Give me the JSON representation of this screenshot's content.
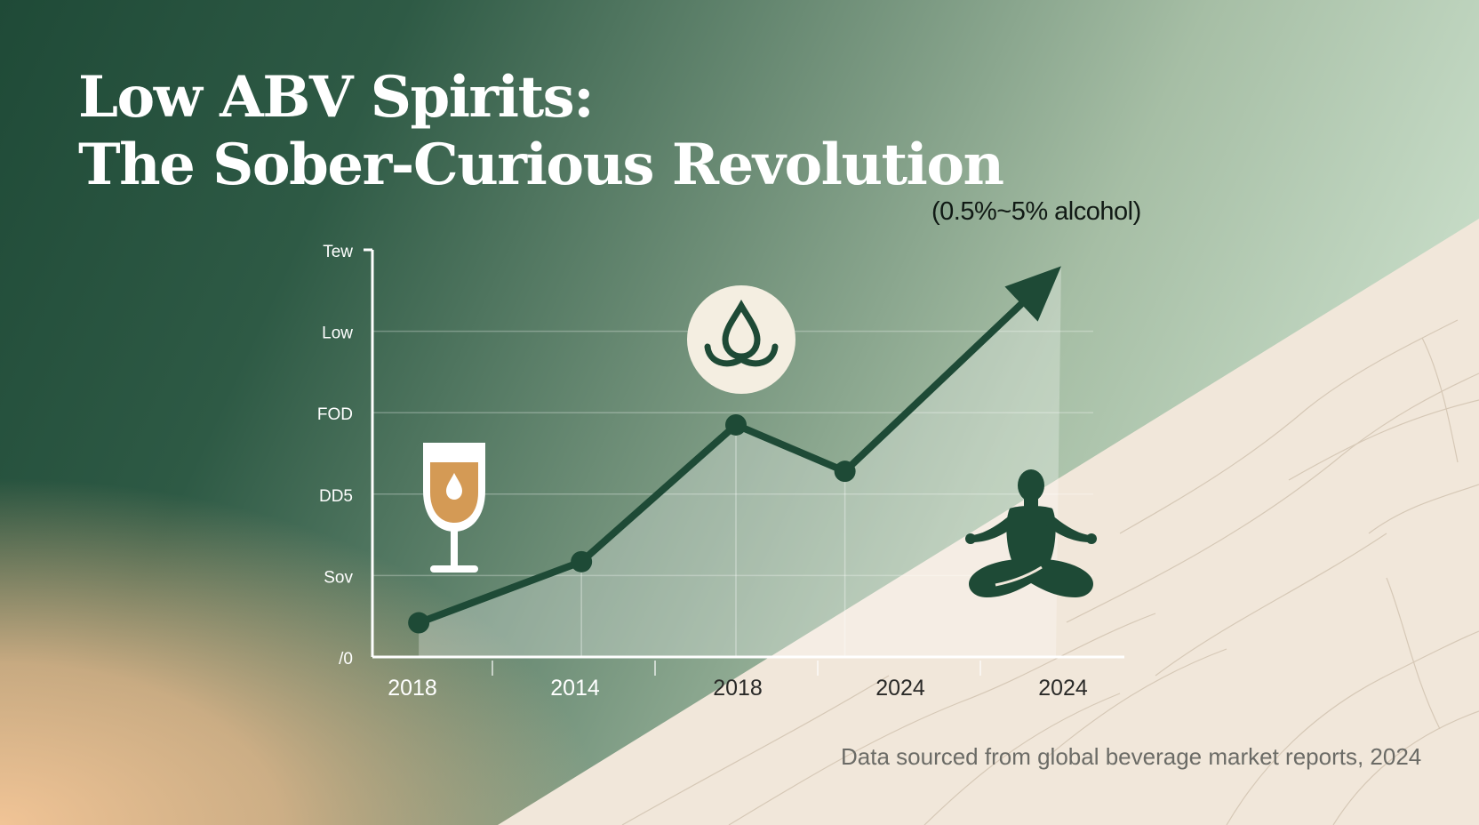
{
  "title": {
    "line1": "Low ABV Spirits:",
    "line2": "The Sober-Curious Revolution"
  },
  "annotations": {
    "range_note": "(0.5%~5% alcohol)",
    "source_note": "Data sourced from global beverage market reports, 2024"
  },
  "icons": [
    "wine-glass-icon",
    "drop-icon",
    "meditation-icon",
    "trend-arrow-icon"
  ],
  "colors": {
    "line": "#1e4a36",
    "wine": "#d49a55",
    "badge": "#f4eee1",
    "title": "#ffffff"
  },
  "chart_data": {
    "type": "line",
    "title": "",
    "xlabel": "",
    "ylabel": "",
    "x_ticks": [
      "2018",
      "2014",
      "2018",
      "2024",
      "2024"
    ],
    "y_ticks": [
      "/0",
      "Sov",
      "DD5",
      "FOD",
      "Low",
      "Tew"
    ],
    "ylim": [
      0,
      5
    ],
    "grid": true,
    "series": [
      {
        "x": [
          0.05,
          1.05,
          2.0,
          2.67,
          4.0
        ],
        "values": [
          0.42,
          1.17,
          2.85,
          2.28,
          4.8
        ]
      }
    ]
  }
}
